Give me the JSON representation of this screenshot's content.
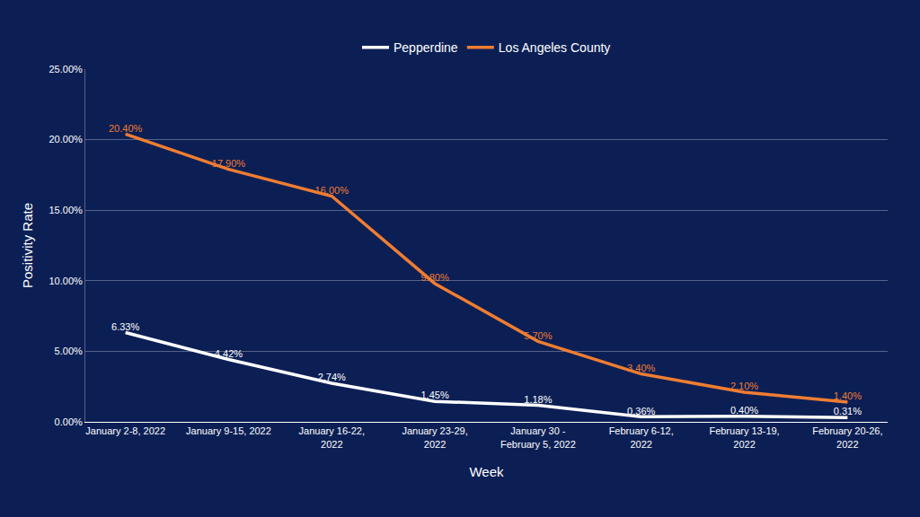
{
  "chart_data": {
    "type": "line",
    "x_label": "Week",
    "y_label": "Positivity Rate",
    "categories": [
      "January 2-8, 2022",
      "January 9-15, 2022",
      "January 16-22, 2022",
      "January 23-29, 2022",
      "January 30 - February 5, 2022",
      "February 6-12, 2022",
      "February 13-19, 2022",
      "February 20-26, 2022"
    ],
    "series": [
      {
        "name": "Pepperdine",
        "color": "#ffffff",
        "values": [
          6.33,
          4.42,
          2.74,
          1.45,
          1.18,
          0.36,
          0.4,
          0.31
        ],
        "value_labels": [
          "6.33%",
          "4.42%",
          "2.74%",
          "1.45%",
          "1.18%",
          "0.36%",
          "0.40%",
          "0.31%"
        ]
      },
      {
        "name": "Los Angeles County",
        "color": "#ef7d32",
        "values": [
          20.4,
          17.9,
          16.0,
          9.8,
          5.7,
          3.4,
          2.1,
          1.4
        ],
        "value_labels": [
          "20.40%",
          "17.90%",
          "16.00%",
          "9.80%",
          "5.70%",
          "3.40%",
          "2.10%",
          "1.40%"
        ]
      }
    ],
    "ylim": [
      0,
      25
    ],
    "yticks": [
      {
        "value": 0,
        "label": "0.00%"
      },
      {
        "value": 5,
        "label": "5.00%"
      },
      {
        "value": 10,
        "label": "10.00%"
      },
      {
        "value": 15,
        "label": "15.00%"
      },
      {
        "value": 20,
        "label": "20.00%"
      },
      {
        "value": 25,
        "label": "25.00%"
      }
    ],
    "grid": true,
    "legend": "top",
    "data_labels": true
  }
}
